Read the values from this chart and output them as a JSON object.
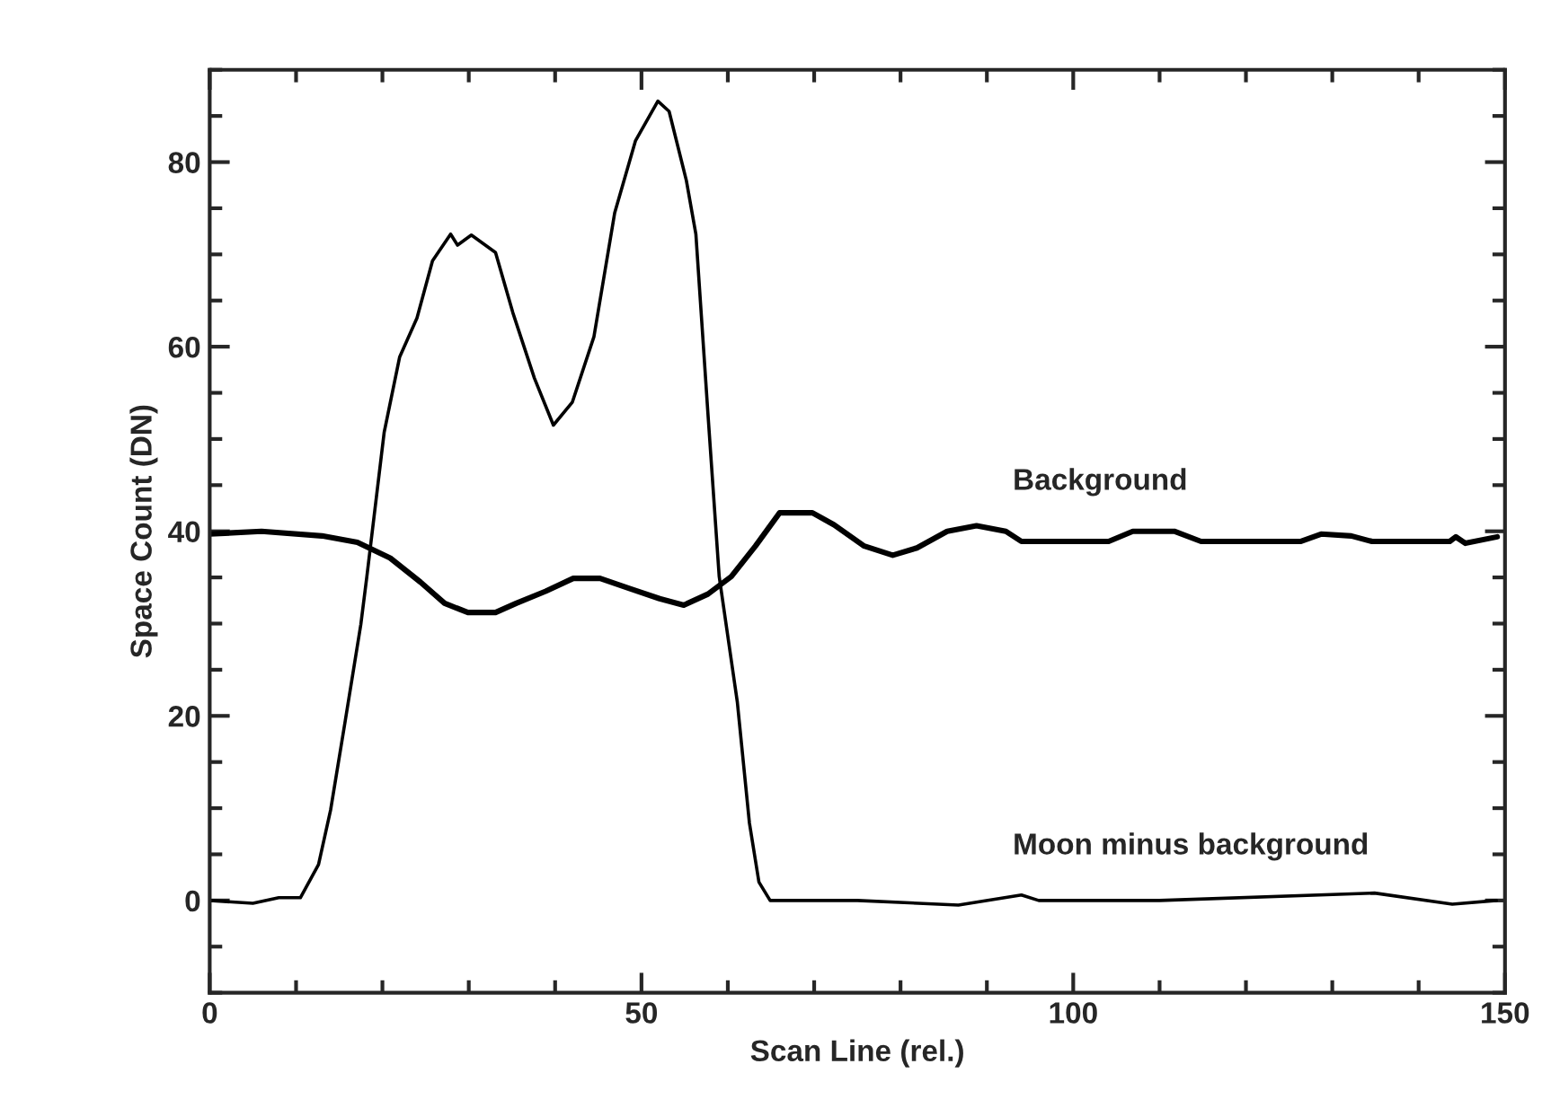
{
  "chart_data": {
    "type": "line",
    "xlabel": "Scan Line (rel.)",
    "ylabel": "Space Count (DN)",
    "xlim": [
      0,
      150
    ],
    "ylim": [
      -10,
      90
    ],
    "xticks": [
      0,
      50,
      100,
      150
    ],
    "yticks": [
      0,
      20,
      40,
      60,
      80
    ],
    "grid": false,
    "legend": false,
    "series": [
      {
        "name": "Background",
        "color": "#000000",
        "x": [
          0,
          6,
          13,
          17.1,
          20.9,
          24.4,
          27.2,
          29.9,
          33.1,
          35.5,
          38.9,
          42.1,
          45.2,
          48.6,
          52.1,
          54.9,
          57.7,
          60.4,
          63.2,
          66,
          69.8,
          72.3,
          75.8,
          79.1,
          81.9,
          85.4,
          88.8,
          92.2,
          94,
          104.1,
          106.9,
          111.7,
          114.8,
          126.3,
          128.7,
          132.2,
          134.6,
          143.6,
          144.3,
          145.4,
          149.1
        ],
        "values": [
          39.7,
          40,
          39.5,
          38.8,
          37.1,
          34.5,
          32.2,
          31.2,
          31.2,
          32.2,
          33.5,
          34.9,
          34.9,
          33.8,
          32.7,
          32,
          33.2,
          35.1,
          38.4,
          42,
          42,
          40.7,
          38.4,
          37.4,
          38.2,
          40,
          40.6,
          40,
          38.9,
          38.9,
          40,
          40,
          38.9,
          38.9,
          39.7,
          39.5,
          38.9,
          38.9,
          39.4,
          38.7,
          39.4
        ]
      },
      {
        "name": "Moon minus background",
        "color": "#000000",
        "x": [
          0,
          5,
          8,
          10.5,
          12.6,
          14,
          15.7,
          17.5,
          18.2,
          20.2,
          22,
          24,
          25.8,
          27.9,
          28.7,
          30.3,
          33.1,
          35.1,
          37.6,
          39.8,
          42,
          44.5,
          46.9,
          49.3,
          51.9,
          53.2,
          55.2,
          56.3,
          57.7,
          59,
          61.1,
          62.5,
          63.6,
          64.9,
          75,
          86.7,
          94,
          96,
          110,
          134.9,
          143.9,
          149
        ],
        "values": [
          0,
          -0.3,
          0.3,
          0.3,
          3.9,
          9.8,
          19.5,
          29.9,
          35.1,
          50.7,
          58.9,
          63.1,
          69.3,
          72.2,
          71,
          72.1,
          70.2,
          63.7,
          56.6,
          51.5,
          54,
          61.1,
          74.5,
          82.3,
          86.6,
          85.5,
          78,
          72.2,
          52.7,
          35.1,
          21.5,
          8.4,
          2,
          0,
          0,
          -0.5,
          0.6,
          0,
          0,
          0.8,
          -0.4,
          0
        ]
      }
    ]
  }
}
